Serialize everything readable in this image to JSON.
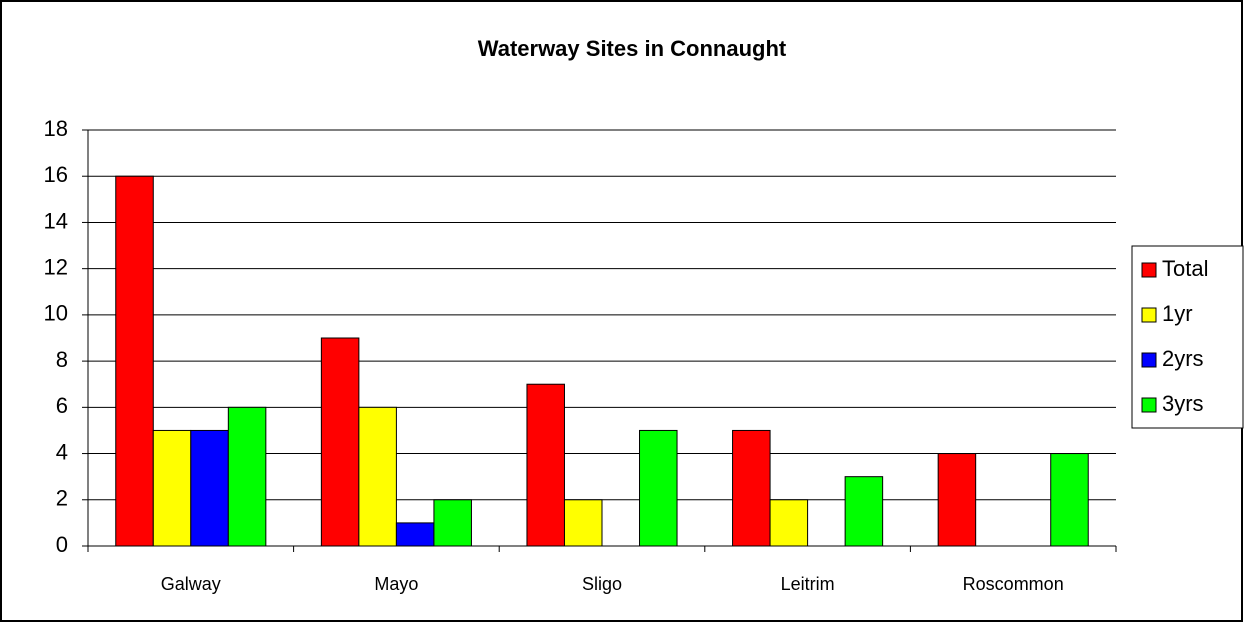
{
  "chart_data": {
    "type": "bar",
    "title": "Waterway Sites in Connaught",
    "categories": [
      "Galway",
      "Mayo",
      "Sligo",
      "Leitrim",
      "Roscommon"
    ],
    "series": [
      {
        "name": "Total",
        "color": "#ff0000",
        "values": [
          16,
          9,
          7,
          5,
          4
        ]
      },
      {
        "name": "1yr",
        "color": "#ffff00",
        "values": [
          5,
          6,
          2,
          2,
          0
        ]
      },
      {
        "name": "2yrs",
        "color": "#0000ff",
        "values": [
          5,
          1,
          0,
          0,
          0
        ]
      },
      {
        "name": "3yrs",
        "color": "#00ff00",
        "values": [
          6,
          2,
          5,
          3,
          4
        ]
      }
    ],
    "ylim": [
      0,
      18
    ],
    "yticks": [
      0,
      2,
      4,
      6,
      8,
      10,
      12,
      14,
      16,
      18
    ],
    "grid": true,
    "legend": "right"
  }
}
